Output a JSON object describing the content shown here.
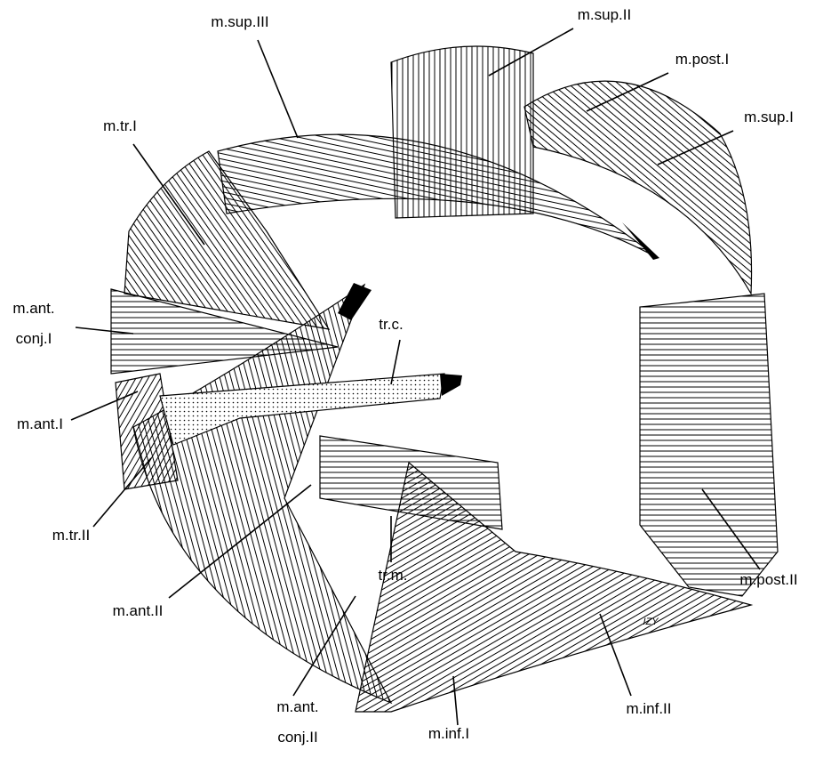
{
  "labels": [
    {
      "lines": [
        "m.sup.III"
      ]
    },
    {
      "lines": [
        "m.sup.II"
      ]
    },
    {
      "lines": [
        "m.post.I"
      ]
    },
    {
      "lines": [
        "m.sup.I"
      ]
    },
    {
      "lines": [
        "m.tr.I"
      ]
    },
    {
      "lines": [
        "m.ant.",
        "conj.I"
      ]
    },
    {
      "lines": [
        "tr.c."
      ]
    },
    {
      "lines": [
        "m.ant.I"
      ]
    },
    {
      "lines": [
        "m.tr.II"
      ]
    },
    {
      "lines": [
        "m.ant.II"
      ]
    },
    {
      "lines": [
        "tr.m."
      ]
    },
    {
      "lines": [
        "m.post.II"
      ]
    },
    {
      "lines": [
        "m.ant.",
        "conj.II"
      ]
    },
    {
      "lines": [
        "m.inf.I"
      ]
    },
    {
      "lines": [
        "m.inf.II"
      ]
    }
  ],
  "signature": "IZY"
}
